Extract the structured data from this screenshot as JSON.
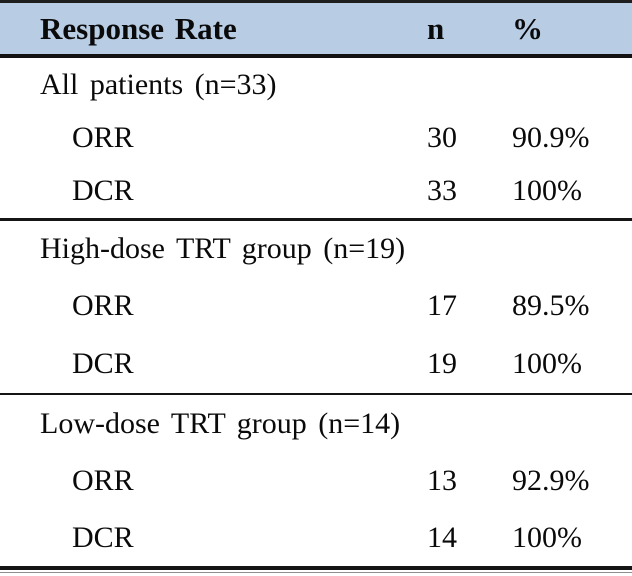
{
  "table": {
    "header": {
      "label": "Response Rate",
      "n": "n",
      "pct": "%"
    },
    "sections": [
      {
        "label": "All patients (n=33)",
        "rows": [
          {
            "name": "ORR",
            "n": "30",
            "pct": "90.9%"
          },
          {
            "name": "DCR",
            "n": "33",
            "pct": "100%"
          }
        ]
      },
      {
        "label": "High-dose TRT group (n=19)",
        "rows": [
          {
            "name": "ORR",
            "n": "17",
            "pct": "89.5%"
          },
          {
            "name": "DCR",
            "n": "19",
            "pct": "100%"
          }
        ]
      },
      {
        "label": "Low-dose TRT group (n=14)",
        "rows": [
          {
            "name": "ORR",
            "n": "13",
            "pct": "92.9%"
          },
          {
            "name": "DCR",
            "n": "14",
            "pct": "100%"
          }
        ]
      }
    ],
    "colors": {
      "header_bg": "#b8cce4",
      "rule": "#151515",
      "text": "#0a0a0a"
    }
  },
  "chart_data": {
    "type": "table",
    "title": "Response Rate",
    "columns": [
      "Response Rate",
      "n",
      "%"
    ],
    "groups": [
      {
        "group": "All patients",
        "group_n": 33,
        "ORR_n": 30,
        "ORR_pct": 90.9,
        "DCR_n": 33,
        "DCR_pct": 100
      },
      {
        "group": "High-dose TRT group",
        "group_n": 19,
        "ORR_n": 17,
        "ORR_pct": 89.5,
        "DCR_n": 19,
        "DCR_pct": 100
      },
      {
        "group": "Low-dose TRT group",
        "group_n": 14,
        "ORR_n": 13,
        "ORR_pct": 92.9,
        "DCR_n": 14,
        "DCR_pct": 100
      }
    ]
  }
}
